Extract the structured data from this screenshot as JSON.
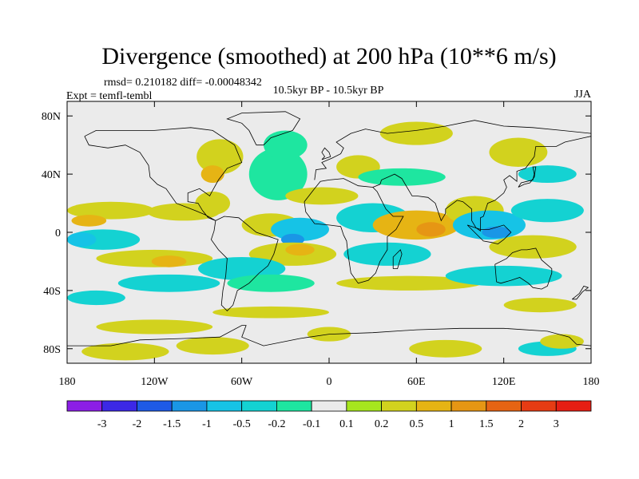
{
  "chart_data": {
    "type": "heatmap",
    "title": "Divergence (smoothed) at 200 hPa (10**6 m/s)",
    "stats_label": "rmsd= 0.210182 diff= -0.00048342",
    "experiment_label": "Expt = temfl-tembl",
    "period_label": "10.5kyr BP - 10.5kyr BP",
    "season_label": "JJA",
    "x_axis": {
      "range": [
        -180,
        180
      ],
      "ticks": [
        {
          "value": -180,
          "label": "180"
        },
        {
          "value": -120,
          "label": "120W"
        },
        {
          "value": -60,
          "label": "60W"
        },
        {
          "value": 0,
          "label": "0"
        },
        {
          "value": 60,
          "label": "60E"
        },
        {
          "value": 120,
          "label": "120E"
        },
        {
          "value": 180,
          "label": "180"
        }
      ]
    },
    "y_axis": {
      "range": [
        -90,
        90
      ],
      "ticks": [
        {
          "value": 80,
          "label": "80N"
        },
        {
          "value": 40,
          "label": "40N"
        },
        {
          "value": 0,
          "label": "0"
        },
        {
          "value": -40,
          "label": "40S"
        },
        {
          "value": -80,
          "label": "80S"
        }
      ]
    },
    "colorbar": {
      "levels": [
        "-3",
        "-2",
        "-1.5",
        "-1",
        "-0.5",
        "-0.2",
        "-0.1",
        "0.1",
        "0.2",
        "0.5",
        "1",
        "1.5",
        "2",
        "3"
      ],
      "colors": [
        "#8c1ee6",
        "#3c28e6",
        "#1e5ae6",
        "#1a96e6",
        "#16c3e6",
        "#14d2d2",
        "#1ee6a0",
        "#ebebeb",
        "#a6e61e",
        "#d2d21e",
        "#e6b414",
        "#e69614",
        "#e66414",
        "#e63c14",
        "#e61e14"
      ]
    },
    "regions": [
      {
        "lon": -150,
        "lat": 15,
        "value": 0.2,
        "rx": 30,
        "ry": 6
      },
      {
        "lon": -165,
        "lat": 8,
        "value": 0.5,
        "rx": 12,
        "ry": 4
      },
      {
        "lon": -100,
        "lat": 14,
        "value": 0.3,
        "rx": 25,
        "ry": 6
      },
      {
        "lon": -155,
        "lat": -5,
        "value": -0.3,
        "rx": 25,
        "ry": 7
      },
      {
        "lon": -170,
        "lat": -5,
        "value": -0.6,
        "rx": 10,
        "ry": 5
      },
      {
        "lon": -120,
        "lat": -18,
        "value": 0.3,
        "rx": 40,
        "ry": 6
      },
      {
        "lon": -110,
        "lat": -20,
        "value": 0.6,
        "rx": 12,
        "ry": 4
      },
      {
        "lon": -110,
        "lat": -35,
        "value": -0.3,
        "rx": 35,
        "ry": 6
      },
      {
        "lon": -80,
        "lat": 20,
        "value": 0.3,
        "rx": 12,
        "ry": 8
      },
      {
        "lon": -75,
        "lat": 52,
        "value": 0.3,
        "rx": 16,
        "ry": 12
      },
      {
        "lon": -80,
        "lat": 40,
        "value": 0.6,
        "rx": 8,
        "ry": 6
      },
      {
        "lon": -35,
        "lat": 40,
        "value": -0.15,
        "rx": 20,
        "ry": 18
      },
      {
        "lon": -30,
        "lat": 60,
        "value": -0.15,
        "rx": 15,
        "ry": 10
      },
      {
        "lon": -40,
        "lat": 5,
        "value": 0.3,
        "rx": 20,
        "ry": 8
      },
      {
        "lon": -20,
        "lat": 2,
        "value": -0.6,
        "rx": 20,
        "ry": 8
      },
      {
        "lon": -25,
        "lat": -5,
        "value": -1.2,
        "rx": 8,
        "ry": 4
      },
      {
        "lon": -25,
        "lat": -15,
        "value": 0.3,
        "rx": 30,
        "ry": 8
      },
      {
        "lon": -20,
        "lat": -12,
        "value": 0.7,
        "rx": 10,
        "ry": 4
      },
      {
        "lon": -60,
        "lat": -25,
        "value": -0.3,
        "rx": 30,
        "ry": 8
      },
      {
        "lon": -40,
        "lat": -35,
        "value": -0.15,
        "rx": 30,
        "ry": 6
      },
      {
        "lon": -5,
        "lat": 25,
        "value": 0.3,
        "rx": 25,
        "ry": 6
      },
      {
        "lon": 20,
        "lat": 45,
        "value": 0.3,
        "rx": 15,
        "ry": 8
      },
      {
        "lon": 50,
        "lat": 38,
        "value": -0.15,
        "rx": 30,
        "ry": 6
      },
      {
        "lon": 60,
        "lat": 68,
        "value": 0.3,
        "rx": 25,
        "ry": 8
      },
      {
        "lon": 30,
        "lat": 10,
        "value": -0.3,
        "rx": 25,
        "ry": 10
      },
      {
        "lon": 60,
        "lat": 5,
        "value": 0.6,
        "rx": 30,
        "ry": 10
      },
      {
        "lon": 70,
        "lat": 2,
        "value": 1.2,
        "rx": 10,
        "ry": 5
      },
      {
        "lon": 40,
        "lat": -15,
        "value": -0.3,
        "rx": 30,
        "ry": 8
      },
      {
        "lon": 55,
        "lat": -35,
        "value": 0.3,
        "rx": 50,
        "ry": 5
      },
      {
        "lon": 100,
        "lat": 15,
        "value": 0.3,
        "rx": 20,
        "ry": 10
      },
      {
        "lon": 110,
        "lat": 5,
        "value": -0.6,
        "rx": 25,
        "ry": 10
      },
      {
        "lon": 115,
        "lat": 0,
        "value": -1.2,
        "rx": 10,
        "ry": 4
      },
      {
        "lon": 140,
        "lat": -10,
        "value": 0.3,
        "rx": 30,
        "ry": 8
      },
      {
        "lon": 150,
        "lat": 15,
        "value": -0.3,
        "rx": 25,
        "ry": 8
      },
      {
        "lon": 130,
        "lat": 55,
        "value": 0.3,
        "rx": 20,
        "ry": 10
      },
      {
        "lon": 150,
        "lat": 40,
        "value": -0.3,
        "rx": 20,
        "ry": 6
      },
      {
        "lon": 120,
        "lat": -30,
        "value": -0.3,
        "rx": 40,
        "ry": 7
      },
      {
        "lon": 145,
        "lat": -50,
        "value": 0.3,
        "rx": 25,
        "ry": 5
      },
      {
        "lon": -160,
        "lat": -45,
        "value": -0.3,
        "rx": 20,
        "ry": 5
      },
      {
        "lon": -120,
        "lat": -65,
        "value": 0.3,
        "rx": 40,
        "ry": 5
      },
      {
        "lon": -40,
        "lat": -55,
        "value": 0.3,
        "rx": 40,
        "ry": 4
      },
      {
        "lon": -140,
        "lat": -82,
        "value": 0.3,
        "rx": 30,
        "ry": 6
      },
      {
        "lon": -80,
        "lat": -78,
        "value": 0.3,
        "rx": 25,
        "ry": 6
      },
      {
        "lon": 0,
        "lat": -70,
        "value": 0.3,
        "rx": 15,
        "ry": 5
      },
      {
        "lon": 80,
        "lat": -80,
        "value": 0.3,
        "rx": 25,
        "ry": 6
      },
      {
        "lon": 150,
        "lat": -80,
        "value": -0.3,
        "rx": 20,
        "ry": 5
      },
      {
        "lon": 160,
        "lat": -75,
        "value": 0.3,
        "rx": 15,
        "ry": 5
      }
    ]
  }
}
